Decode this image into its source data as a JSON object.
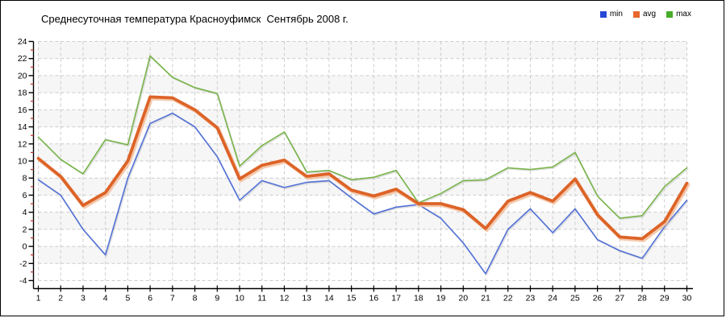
{
  "title": "Среднесуточная температура Красноуфимск  Сентябрь 2008 г.",
  "legend": [
    {
      "label": "min",
      "color": "#2748d5"
    },
    {
      "label": "avg",
      "color": "#e8682e"
    },
    {
      "label": "max",
      "color": "#46ac29"
    }
  ],
  "chart_data": {
    "type": "line",
    "title": "Среднесуточная температура Красноуфимск  Сентябрь 2008 г.",
    "xlabel": "",
    "ylabel": "",
    "x": [
      1,
      2,
      3,
      4,
      5,
      6,
      7,
      8,
      9,
      10,
      11,
      12,
      13,
      14,
      15,
      16,
      17,
      18,
      19,
      20,
      21,
      22,
      23,
      24,
      25,
      26,
      27,
      28,
      29,
      30
    ],
    "series": [
      {
        "name": "min",
        "color": "#5170d6",
        "width": 1.6,
        "values": [
          7.8,
          6.0,
          2.0,
          -1.0,
          8.0,
          14.4,
          15.6,
          14.0,
          10.5,
          5.4,
          7.7,
          6.9,
          7.5,
          7.7,
          5.7,
          3.8,
          4.6,
          4.9,
          3.3,
          0.4,
          -3.2,
          2.0,
          4.4,
          1.6,
          4.4,
          0.8,
          -0.5,
          -1.4,
          2.3,
          5.4
        ]
      },
      {
        "name": "avg",
        "color": "#dd6327",
        "width": 3.8,
        "values": [
          10.3,
          8.2,
          4.8,
          6.3,
          10.0,
          17.5,
          17.4,
          16.0,
          13.9,
          7.9,
          9.5,
          10.1,
          8.2,
          8.5,
          6.6,
          5.9,
          6.7,
          5.0,
          5.0,
          4.3,
          2.1,
          5.3,
          6.3,
          5.3,
          7.9,
          3.7,
          1.1,
          0.9,
          2.9,
          7.4
        ]
      },
      {
        "name": "max",
        "color": "#78b449",
        "width": 1.6,
        "values": [
          12.8,
          10.2,
          8.5,
          12.5,
          11.9,
          22.3,
          19.8,
          18.6,
          17.9,
          9.4,
          11.8,
          13.4,
          8.7,
          8.9,
          7.8,
          8.1,
          8.9,
          5.1,
          6.2,
          7.7,
          7.8,
          9.2,
          9.0,
          9.3,
          11.0,
          5.9,
          3.3,
          3.6,
          7.0,
          9.2
        ]
      }
    ],
    "ylim": [
      -4,
      24
    ],
    "ytick_step": 2,
    "yticks": [
      24,
      22,
      20,
      18,
      16,
      14,
      12,
      10,
      8,
      6,
      4,
      2,
      0,
      -2,
      -4
    ],
    "xticks": [
      1,
      2,
      3,
      4,
      5,
      6,
      7,
      8,
      9,
      10,
      11,
      12,
      13,
      14,
      15,
      16,
      17,
      18,
      19,
      20,
      21,
      22,
      23,
      24,
      25,
      26,
      27,
      28,
      29,
      30
    ],
    "grid": true,
    "legend_position": "top-right",
    "band_colors": [
      "#f6f6f6",
      "#ffffff"
    ],
    "grid_color": "#cccccc",
    "axis_color": "#000000",
    "minor_tick_color": "#cc2a2a",
    "avg_halo_color": "#f3bb97",
    "shadow_color": "#bbbbbb"
  }
}
